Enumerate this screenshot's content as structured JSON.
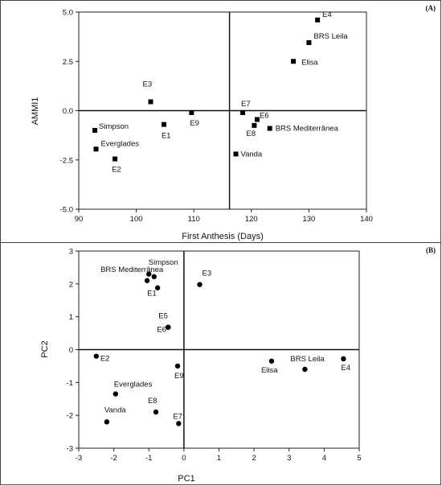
{
  "chart_data": [
    {
      "type": "scatter",
      "panel_label": "(A)",
      "xlabel": "First Anthesis (Days)",
      "ylabel": "AMMI1",
      "xlim": [
        90,
        140
      ],
      "ylim": [
        -5.0,
        5.0
      ],
      "xticks": [
        "90",
        "100",
        "110",
        "120",
        "130",
        "140"
      ],
      "yticks": [
        "-5.0",
        "-2.5",
        "0.0",
        "2.5",
        "5.0"
      ],
      "marker": "square",
      "reference_lines": {
        "x": 116.2,
        "y": 0
      },
      "points": [
        {
          "label": "E4",
          "x": 131.5,
          "y": 4.6
        },
        {
          "label": "BRS Leila",
          "x": 130.0,
          "y": 3.45
        },
        {
          "label": "Elisa",
          "x": 127.3,
          "y": 2.5
        },
        {
          "label": "E3",
          "x": 102.5,
          "y": 0.45
        },
        {
          "label": "E9",
          "x": 109.6,
          "y": -0.1
        },
        {
          "label": "E1",
          "x": 104.8,
          "y": -0.7
        },
        {
          "label": "E7",
          "x": 118.5,
          "y": -0.1
        },
        {
          "label": "E6",
          "x": 121.0,
          "y": -0.45
        },
        {
          "label": "E8",
          "x": 120.5,
          "y": -0.75
        },
        {
          "label": "BRS Mediterrânea",
          "x": 123.2,
          "y": -0.9
        },
        {
          "label": "Vanda",
          "x": 117.3,
          "y": -2.2
        },
        {
          "label": "Simpson",
          "x": 92.8,
          "y": -1.0
        },
        {
          "label": "Everglades",
          "x": 93.0,
          "y": -1.95
        },
        {
          "label": "E2",
          "x": 96.3,
          "y": -2.45
        }
      ]
    },
    {
      "type": "scatter",
      "panel_label": "(B)",
      "xlabel": "PC1",
      "ylabel": "PC2",
      "xlim": [
        -3,
        5
      ],
      "ylim": [
        -3,
        3
      ],
      "xticks": [
        "-3",
        "-2",
        "-1",
        "0",
        "1",
        "2",
        "3",
        "4",
        "5"
      ],
      "yticks": [
        "-3",
        "-2",
        "-1",
        "0",
        "1",
        "2",
        "3"
      ],
      "marker": "circle",
      "reference_lines": {
        "x": 0,
        "y": 0
      },
      "points": [
        {
          "label": "",
          "x": -1.0,
          "y": 2.3
        },
        {
          "label": "Simpson",
          "x": -0.85,
          "y": 2.22
        },
        {
          "label": "BRS Mediterrânea",
          "x": -1.05,
          "y": 2.1
        },
        {
          "label": "E1",
          "x": -0.75,
          "y": 1.88
        },
        {
          "label": "E3",
          "x": 0.45,
          "y": 1.98
        },
        {
          "label": "E5",
          "x": -0.45,
          "y": 0.68
        },
        {
          "label": "E6",
          "x": -0.45,
          "y": 0.68
        },
        {
          "label": "E2",
          "x": -2.5,
          "y": -0.2
        },
        {
          "label": "E9",
          "x": -0.18,
          "y": -0.5
        },
        {
          "label": "Everglades",
          "x": -1.95,
          "y": -1.35
        },
        {
          "label": "E8",
          "x": -0.8,
          "y": -1.9
        },
        {
          "label": "Vanda",
          "x": -2.2,
          "y": -2.2
        },
        {
          "label": "E7",
          "x": -0.15,
          "y": -2.25
        },
        {
          "label": "Elisa",
          "x": 2.5,
          "y": -0.35
        },
        {
          "label": "BRS Leila",
          "x": 3.45,
          "y": -0.6
        },
        {
          "label": "E4",
          "x": 4.55,
          "y": -0.28
        }
      ]
    }
  ]
}
